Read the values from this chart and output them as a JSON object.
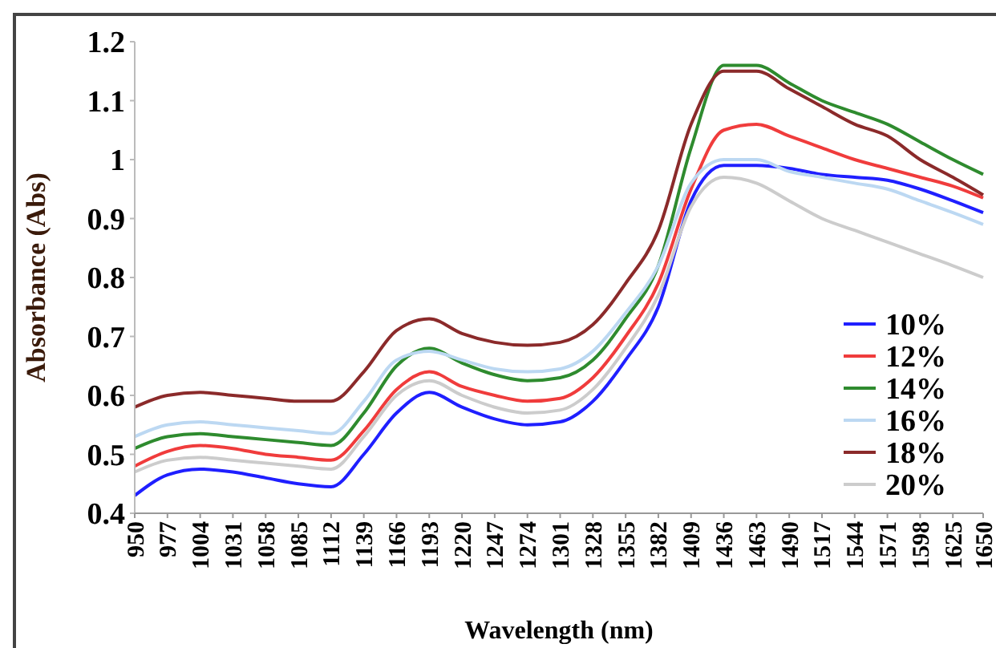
{
  "chart_data": {
    "type": "line",
    "xlabel": "Wavelength (nm)",
    "ylabel": "Absorbance (Abs)",
    "x": [
      950,
      977,
      1004,
      1031,
      1058,
      1085,
      1112,
      1139,
      1166,
      1193,
      1220,
      1247,
      1274,
      1301,
      1328,
      1355,
      1382,
      1409,
      1436,
      1463,
      1490,
      1517,
      1544,
      1571,
      1598,
      1625,
      1650
    ],
    "xlim": [
      950,
      1650
    ],
    "xticks": [
      950,
      977,
      1004,
      1031,
      1058,
      1085,
      1112,
      1139,
      1166,
      1193,
      1220,
      1247,
      1274,
      1301,
      1328,
      1355,
      1382,
      1409,
      1436,
      1463,
      1490,
      1517,
      1544,
      1571,
      1598,
      1625,
      1650
    ],
    "ylim": [
      0.4,
      1.2
    ],
    "yticks": [
      0.4,
      0.5,
      0.6,
      0.7,
      0.8,
      0.9,
      1,
      1.1,
      1.2
    ],
    "legend": "bottom right",
    "grid": false,
    "series": [
      {
        "name": "10%",
        "color": "#1f1fff",
        "values": [
          0.43,
          0.465,
          0.475,
          0.47,
          0.46,
          0.45,
          0.445,
          0.5,
          0.57,
          0.605,
          0.58,
          0.56,
          0.55,
          0.555,
          0.59,
          0.66,
          0.75,
          0.93,
          0.99,
          0.99,
          0.985,
          0.975,
          0.97,
          0.965,
          0.95,
          0.93,
          0.91
        ]
      },
      {
        "name": "12%",
        "color": "#f03c3c",
        "values": [
          0.48,
          0.505,
          0.515,
          0.51,
          0.5,
          0.495,
          0.49,
          0.54,
          0.61,
          0.64,
          0.615,
          0.6,
          0.59,
          0.595,
          0.63,
          0.7,
          0.79,
          0.95,
          1.05,
          1.06,
          1.04,
          1.02,
          1.0,
          0.985,
          0.97,
          0.955,
          0.935
        ]
      },
      {
        "name": "14%",
        "color": "#2e8b2e",
        "values": [
          0.51,
          0.53,
          0.535,
          0.53,
          0.525,
          0.52,
          0.515,
          0.57,
          0.65,
          0.68,
          0.655,
          0.635,
          0.625,
          0.63,
          0.66,
          0.73,
          0.82,
          1.02,
          1.16,
          1.16,
          1.13,
          1.1,
          1.08,
          1.06,
          1.03,
          1.0,
          0.975
        ]
      },
      {
        "name": "16%",
        "color": "#bcd8f2",
        "values": [
          0.53,
          0.55,
          0.555,
          0.55,
          0.545,
          0.54,
          0.535,
          0.59,
          0.66,
          0.675,
          0.66,
          0.645,
          0.64,
          0.645,
          0.675,
          0.74,
          0.82,
          0.96,
          1.0,
          1.0,
          0.98,
          0.97,
          0.96,
          0.95,
          0.93,
          0.91,
          0.89
        ]
      },
      {
        "name": "18%",
        "color": "#8b2a2a",
        "values": [
          0.58,
          0.6,
          0.605,
          0.6,
          0.595,
          0.59,
          0.59,
          0.64,
          0.71,
          0.73,
          0.705,
          0.69,
          0.685,
          0.69,
          0.72,
          0.79,
          0.88,
          1.06,
          1.15,
          1.15,
          1.12,
          1.09,
          1.06,
          1.04,
          1.0,
          0.97,
          0.94
        ]
      },
      {
        "name": "20%",
        "color": "#cccccc",
        "values": [
          0.47,
          0.49,
          0.495,
          0.49,
          0.485,
          0.48,
          0.475,
          0.53,
          0.6,
          0.625,
          0.6,
          0.58,
          0.57,
          0.575,
          0.61,
          0.68,
          0.77,
          0.92,
          0.97,
          0.96,
          0.93,
          0.9,
          0.88,
          0.86,
          0.84,
          0.82,
          0.8
        ]
      }
    ]
  }
}
